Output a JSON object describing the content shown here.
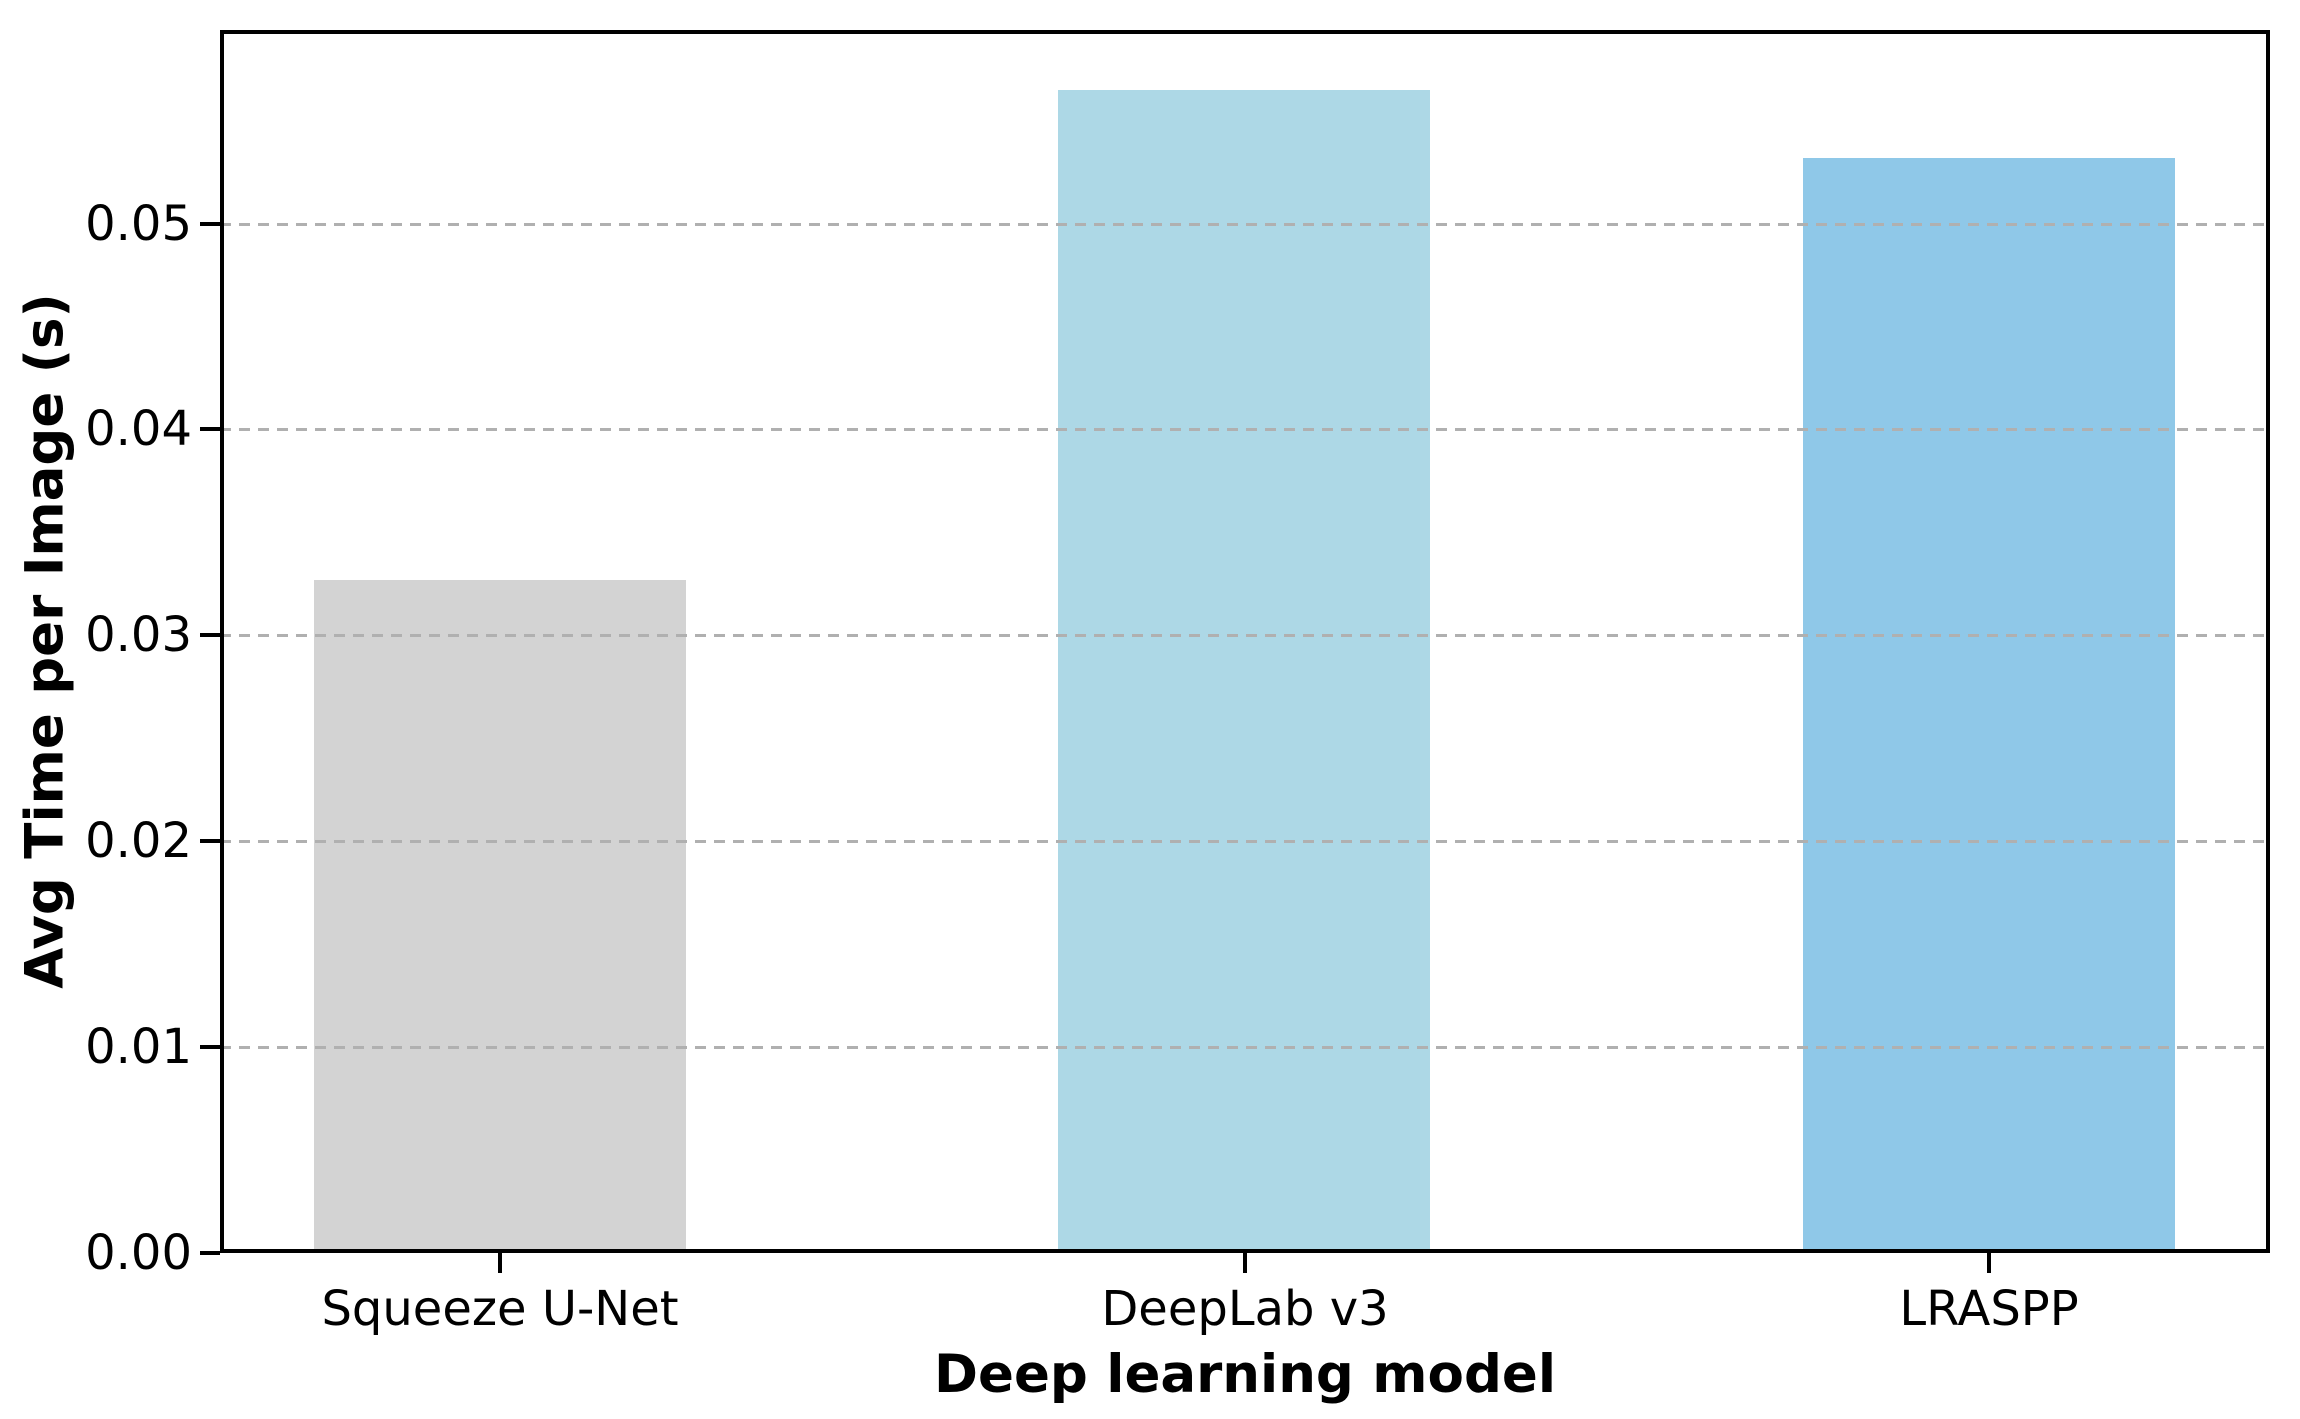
{
  "chart_data": {
    "type": "bar",
    "title": "",
    "xlabel": "Deep learning model",
    "ylabel": "Avg Time per Image (s)",
    "categories": [
      "Squeeze U-Net",
      "DeepLab v3",
      "LRASPP"
    ],
    "values": [
      0.0327,
      0.0565,
      0.0532
    ],
    "bar_colors": [
      "#d3d3d3",
      "#add8e6",
      "#8fc8e8"
    ],
    "ylim": [
      0,
      0.0594
    ],
    "y_ticks": [
      {
        "value": 0.0,
        "label": "0.00"
      },
      {
        "value": 0.01,
        "label": "0.01"
      },
      {
        "value": 0.02,
        "label": "0.02"
      },
      {
        "value": 0.03,
        "label": "0.03"
      },
      {
        "value": 0.04,
        "label": "0.04"
      },
      {
        "value": 0.05,
        "label": "0.05"
      }
    ],
    "grid": {
      "horizontal": true,
      "style": "dashed",
      "color": "#b0b0b0"
    },
    "legend": "none",
    "colors": {
      "spine": "#000000",
      "text": "#000000",
      "background": "#ffffff"
    }
  }
}
